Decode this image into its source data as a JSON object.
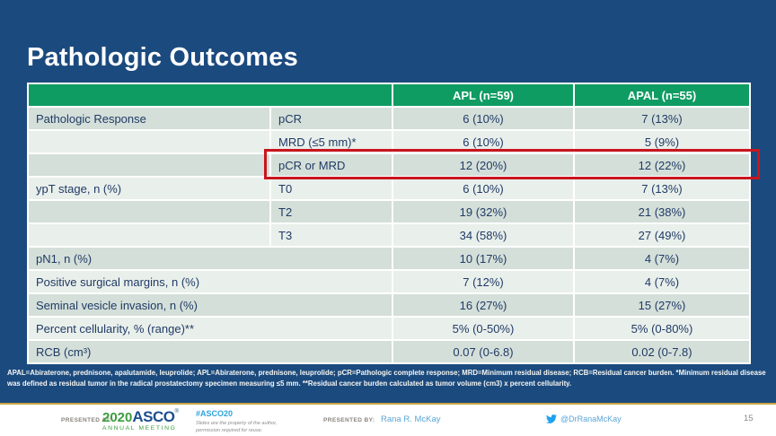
{
  "slide": {
    "title": "Pathologic Outcomes",
    "colors": {
      "background_blue": "#1b4a7e",
      "header_green": "#0f9c63",
      "row_band_dark": "#d4dfd9",
      "row_band_light": "#e9efeb",
      "table_text_navy": "#203b66",
      "highlight_red": "#c9151e",
      "gold_separator": "#c9a445",
      "footer_link_blue": "#5aa5d8",
      "twitter_blue": "#1da1f2"
    }
  },
  "table": {
    "headers": {
      "apl": "APL (n=59)",
      "apal": "APAL (n=55)"
    },
    "rows": [
      {
        "group": "Pathologic Response",
        "sub": "pCR",
        "apl": "6 (10%)",
        "apal": "7 (13%)",
        "band": "dark",
        "highlight": false
      },
      {
        "group": "",
        "sub": "MRD (≤5 mm)*",
        "apl": "6 (10%)",
        "apal": "5 (9%)",
        "band": "light",
        "highlight": false
      },
      {
        "group": "",
        "sub": "pCR or MRD",
        "apl": "12 (20%)",
        "apal": "12 (22%)",
        "band": "dark",
        "highlight": true
      },
      {
        "group": "ypT stage, n (%)",
        "sub": "T0",
        "apl": "6 (10%)",
        "apal": "7 (13%)",
        "band": "light",
        "highlight": false
      },
      {
        "group": "",
        "sub": "T2",
        "apl": "19 (32%)",
        "apal": "21 (38%)",
        "band": "dark",
        "highlight": false
      },
      {
        "group": "",
        "sub": "T3",
        "apl": "34 (58%)",
        "apal": "27 (49%)",
        "band": "light",
        "highlight": false
      },
      {
        "group": "pN1, n (%)",
        "sub": null,
        "apl": "10 (17%)",
        "apal": "4 (7%)",
        "band": "dark",
        "highlight": false
      },
      {
        "group": "Positive surgical margins, n (%)",
        "sub": null,
        "apl": "7 (12%)",
        "apal": "4 (7%)",
        "band": "light",
        "highlight": false
      },
      {
        "group": "Seminal vesicle invasion, n (%)",
        "sub": null,
        "apl": "16 (27%)",
        "apal": "15 (27%)",
        "band": "dark",
        "highlight": false
      },
      {
        "group": "Percent cellularity, % (range)**",
        "sub": null,
        "apl": "5% (0-50%)",
        "apal": "5% (0-80%)",
        "band": "light",
        "highlight": false
      },
      {
        "group": "RCB (cm³)",
        "sub": null,
        "apl": "0.07 (0-6.8)",
        "apal": "0.02 (0-7.8)",
        "band": "dark",
        "highlight": false
      }
    ]
  },
  "footnote": "APAL=Abiraterone, prednisone, apalutamide, leuprolide; APL=Abiraterone, prednisone, leuprolide; pCR=Pathologic complete response; MRD=Minimum residual disease; RCB=Residual cancer burden. *Minimum residual disease was defined as residual tumor in the radical prostatectomy specimen measuring ≤5 mm. **Residual cancer burden calculated as tumor volume (cm3) x percent cellularity.",
  "footer": {
    "presented_at_label": "PRESENTED AT:",
    "logo_year": "2020",
    "logo_asco": "ASCO",
    "logo_reg": "®",
    "logo_sub": "ANNUAL MEETING",
    "hashtag": "#ASCO20",
    "disclaimer_line1": "Slides are the property of the author,",
    "disclaimer_line2": "permission required for reuse.",
    "presented_by_label": "PRESENTED BY:",
    "presenter": "Rana R. McKay",
    "twitter_icon": "twitter-bird-icon",
    "twitter_handle": "@DrRanaMcKay",
    "page_number": "15"
  }
}
